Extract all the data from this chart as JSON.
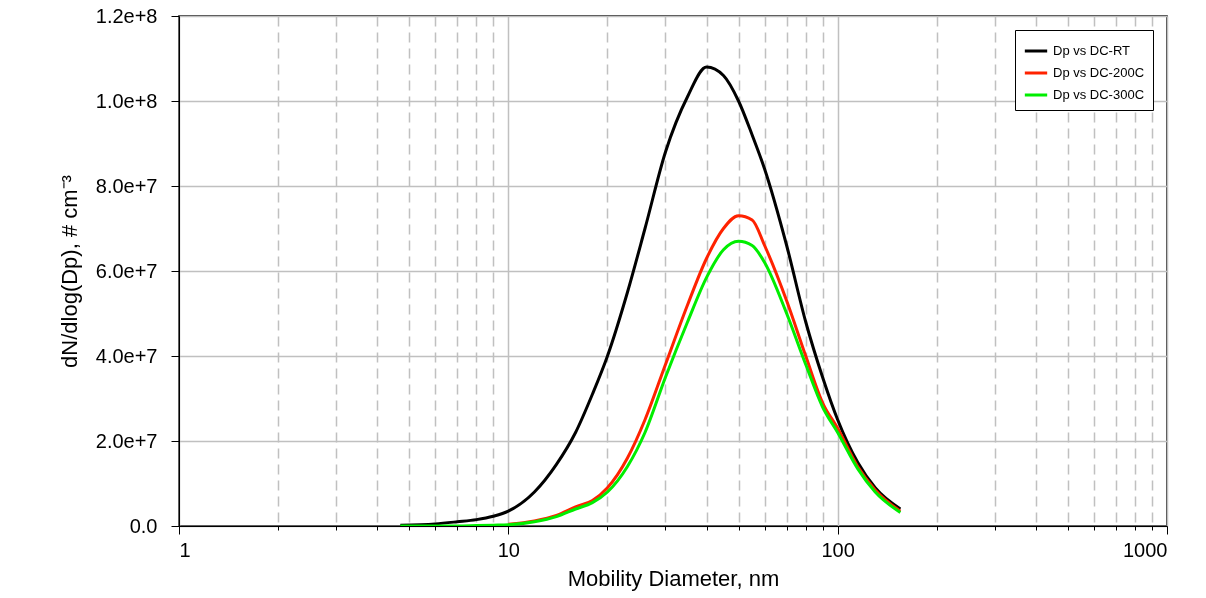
{
  "chart_data": {
    "type": "line",
    "xlabel": "Mobility Diameter, nm",
    "ylabel": "dN/dlog(Dp), # cm⁻³",
    "log": "x",
    "grid": true,
    "legend": "top right",
    "line_style": "solid",
    "marker": "none",
    "xlim": [
      1,
      1000
    ],
    "xticks": [
      1,
      {
        "value": 2,
        "label": null
      },
      {
        "value": 3,
        "label": null
      },
      {
        "value": 4,
        "label": null
      },
      {
        "value": 5,
        "label": null
      },
      {
        "value": 6,
        "label": null
      },
      {
        "value": 7,
        "label": null
      },
      {
        "value": 8,
        "label": null
      },
      {
        "value": 9,
        "label": null
      },
      10,
      {
        "value": 20,
        "label": null
      },
      {
        "value": 30,
        "label": null
      },
      {
        "value": 40,
        "label": null
      },
      {
        "value": 50,
        "label": null
      },
      {
        "value": 60,
        "label": null
      },
      {
        "value": 70,
        "label": null
      },
      {
        "value": 80,
        "label": null
      },
      {
        "value": 90,
        "label": null
      },
      100,
      {
        "value": 200,
        "label": null
      },
      {
        "value": 300,
        "label": null
      },
      {
        "value": 400,
        "label": null
      },
      {
        "value": 500,
        "label": null
      },
      {
        "value": 600,
        "label": null
      },
      {
        "value": 700,
        "label": null
      },
      {
        "value": 800,
        "label": null
      },
      {
        "value": 900,
        "label": null
      },
      1000
    ],
    "ylim": [
      0,
      120000000
    ],
    "yticks": [
      {
        "value": 0,
        "label": "0.0"
      },
      {
        "value": 20000000,
        "label": "2.0e+7"
      },
      {
        "value": 40000000,
        "label": "4.0e+7"
      },
      {
        "value": 60000000,
        "label": "6.0e+7"
      },
      {
        "value": 80000000,
        "label": "8.0e+7"
      },
      {
        "value": 100000000,
        "label": "1.0e+8"
      },
      {
        "value": 120000000,
        "label": "1.2e+8"
      }
    ],
    "x": [
      4.7,
      6,
      7,
      8,
      9,
      10,
      12,
      14,
      16,
      18,
      20,
      23,
      26,
      30,
      35,
      40,
      45,
      50,
      55,
      60,
      70,
      80,
      90,
      100,
      115,
      130,
      155
    ],
    "series": [
      {
        "name": "Dp vs DC-RT",
        "color": "#000000",
        "values": [
          200000,
          500000,
          1000000,
          1500000,
          2300000,
          3500000,
          8000000,
          14500000,
          22000000,
          31000000,
          40000000,
          55000000,
          70000000,
          88000000,
          101000000,
          108000000,
          106000000,
          100000000,
          92000000,
          84000000,
          66000000,
          48000000,
          35000000,
          25000000,
          15000000,
          9000000,
          4000000
        ]
      },
      {
        "name": "Dp vs DC-200C",
        "color": "#ff2200",
        "values": [
          null,
          null,
          null,
          null,
          null,
          400000,
          1200000,
          2500000,
          4500000,
          6000000,
          9000000,
          16000000,
          25000000,
          38000000,
          52000000,
          63000000,
          70000000,
          73000000,
          72000000,
          66000000,
          53000000,
          40000000,
          29000000,
          23000000,
          14000000,
          8500000,
          3500000
        ]
      },
      {
        "name": "Dp vs DC-300C",
        "color": "#00ee00",
        "values": [
          0,
          0,
          0,
          100000,
          200000,
          300000,
          1000000,
          2200000,
          4000000,
          5500000,
          8000000,
          14000000,
          22000000,
          35000000,
          48000000,
          58500000,
          65000000,
          67000000,
          66000000,
          62000000,
          50000000,
          38000000,
          28000000,
          22000000,
          13500000,
          8000000,
          3200000
        ]
      }
    ]
  }
}
